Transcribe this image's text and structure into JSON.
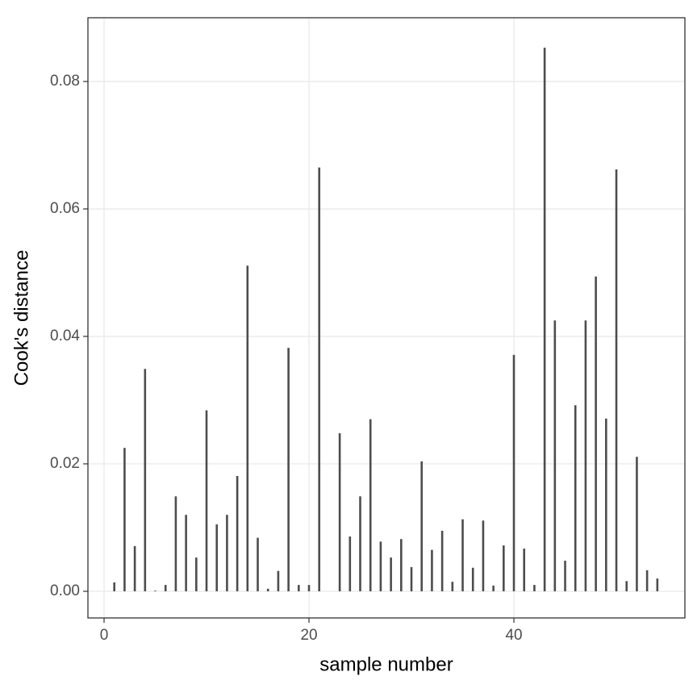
{
  "chart_data": {
    "type": "bar",
    "x_label": "sample number",
    "y_label": "Cook's distance",
    "x": [
      1,
      2,
      3,
      4,
      5,
      6,
      7,
      8,
      9,
      10,
      11,
      12,
      13,
      14,
      15,
      16,
      17,
      18,
      19,
      20,
      21,
      22,
      23,
      24,
      25,
      26,
      27,
      28,
      29,
      30,
      31,
      32,
      33,
      34,
      35,
      36,
      37,
      38,
      39,
      40,
      41,
      42,
      43,
      44,
      45,
      46,
      47,
      48,
      49,
      50,
      51,
      52,
      53,
      54
    ],
    "values": [
      0.0014,
      0.0225,
      0.0071,
      0.0349,
      0.0001,
      0.001,
      0.0149,
      0.012,
      0.0053,
      0.0284,
      0.0105,
      0.012,
      0.0181,
      0.0511,
      0.0084,
      0.0004,
      0.0032,
      0.0382,
      0.001,
      0.001,
      0.0665,
      0,
      0.0248,
      0.0086,
      0.0149,
      0.027,
      0.0078,
      0.0053,
      0.0082,
      0.0038,
      0.0204,
      0.0065,
      0.0095,
      0.0015,
      0.0113,
      0.0037,
      0.0111,
      0.0009,
      0.0072,
      0.0371,
      0.0067,
      0.001,
      0.0853,
      0.0425,
      0.0048,
      0.0292,
      0.0425,
      0.0494,
      0.0271,
      0.0662,
      0.0016,
      0.0211,
      0.0033,
      0.002
    ],
    "color": "#4d4d4d",
    "xlim": [
      -1.575,
      56.69
    ],
    "xticks": [
      0,
      20,
      40
    ],
    "ylim": [
      -0.00418,
      0.09
    ],
    "yticks": [
      {
        "value": 0,
        "label": "0.00"
      },
      {
        "value": 0.02,
        "label": "0.02"
      },
      {
        "value": 0.04,
        "label": "0.04"
      },
      {
        "value": 0.06,
        "label": "0.06"
      },
      {
        "value": 0.08,
        "label": "0.08"
      }
    ],
    "grid": true
  }
}
